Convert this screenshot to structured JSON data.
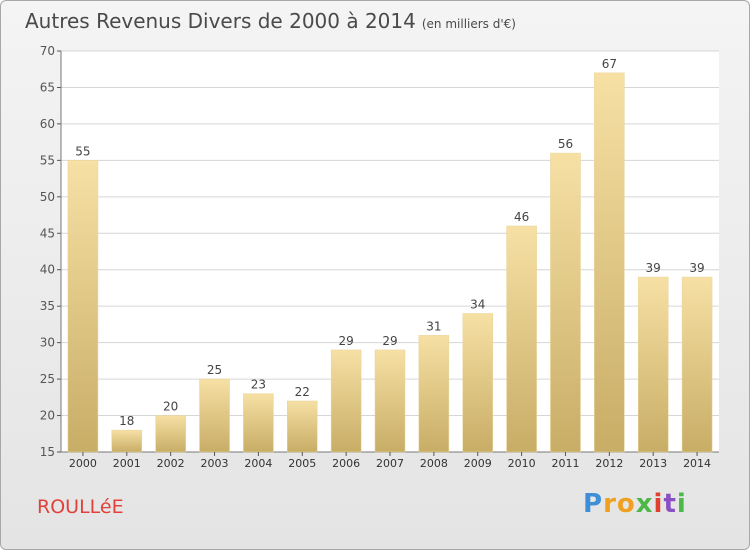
{
  "chart_data": {
    "type": "bar",
    "title": "Autres Revenus Divers de 2000 à 2014",
    "subtitle": "(en milliers d'€)",
    "categories": [
      "2000",
      "2001",
      "2002",
      "2003",
      "2004",
      "2005",
      "2006",
      "2007",
      "2008",
      "2009",
      "2010",
      "2011",
      "2012",
      "2013",
      "2014"
    ],
    "values": [
      55,
      18,
      20,
      25,
      23,
      22,
      29,
      29,
      31,
      34,
      46,
      56,
      67,
      39,
      39
    ],
    "ylim": [
      15,
      70
    ],
    "yticks": [
      15,
      20,
      25,
      30,
      35,
      40,
      45,
      50,
      55,
      60,
      65,
      70
    ],
    "grid": true,
    "bar_color_light": "#f6e0a4",
    "bar_color_dark": "#c8ad66"
  },
  "footer": {
    "town": "ROULLéE",
    "logo": "Proxiti"
  }
}
